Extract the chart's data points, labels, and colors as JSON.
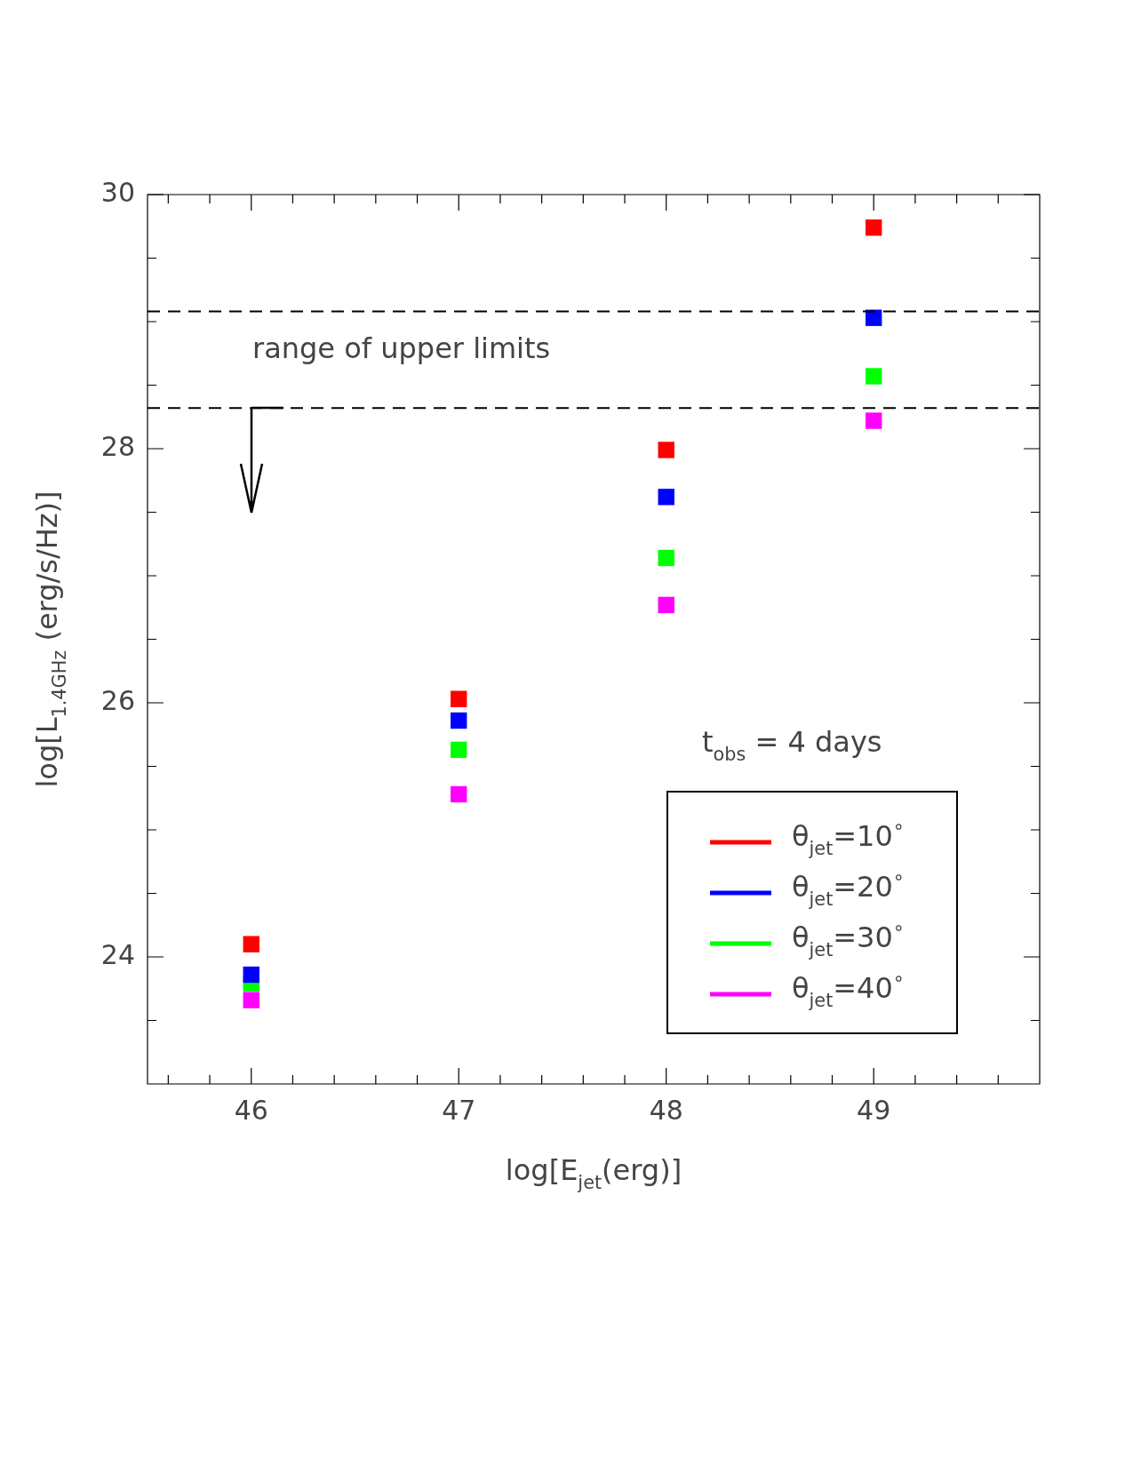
{
  "chart_data": {
    "type": "scatter",
    "xlabel": "log[E$_{jet}$(erg)]",
    "ylabel": "log[L$_{1.4GHz}$ (erg/s/Hz)]",
    "x": [
      46,
      47,
      48,
      49
    ],
    "series": [
      {
        "name": "θ$_{jet}$=10$^{∘}$",
        "color": "#ff0000",
        "values": [
          24.1,
          26.03,
          27.99,
          29.74
        ]
      },
      {
        "name": "θ$_{jet}$=20$^{∘}$",
        "color": "#0000ff",
        "values": [
          23.86,
          25.86,
          27.62,
          29.03
        ]
      },
      {
        "name": "θ$_{jet}$=30$^{∘}$",
        "color": "#00ff00",
        "values": [
          23.79,
          25.63,
          27.14,
          28.57
        ]
      },
      {
        "name": "θ$_{jet}$=40$^{∘}$",
        "color": "#ff00ff",
        "values": [
          23.66,
          25.28,
          26.77,
          28.22
        ]
      }
    ],
    "xlim": [
      45.5,
      49.8
    ],
    "ylim": [
      23,
      30
    ],
    "xticks": [
      {
        "value": 45.6,
        "label": null
      },
      {
        "value": 45.8,
        "label": null
      },
      46,
      {
        "value": 46.2,
        "label": null
      },
      {
        "value": 46.4,
        "label": null
      },
      {
        "value": 46.6,
        "label": null
      },
      {
        "value": 46.8,
        "label": null
      },
      47,
      {
        "value": 47.2,
        "label": null
      },
      {
        "value": 47.4,
        "label": null
      },
      {
        "value": 47.6,
        "label": null
      },
      {
        "value": 47.8,
        "label": null
      },
      48,
      {
        "value": 48.2,
        "label": null
      },
      {
        "value": 48.4,
        "label": null
      },
      {
        "value": 48.6,
        "label": null
      },
      {
        "value": 48.8,
        "label": null
      },
      49,
      {
        "value": 49.2,
        "label": null
      },
      {
        "value": 49.4,
        "label": null
      },
      {
        "value": 49.6,
        "label": null
      }
    ],
    "yticks": [
      {
        "value": 23.5,
        "label": null
      },
      24,
      {
        "value": 24.5,
        "label": null
      },
      {
        "value": 25,
        "label": null
      },
      {
        "value": 25.5,
        "label": null
      },
      26,
      {
        "value": 26.5,
        "label": null
      },
      {
        "value": 27,
        "label": null
      },
      {
        "value": 27.5,
        "label": null
      },
      28,
      {
        "value": 28.5,
        "label": null
      },
      {
        "value": 29,
        "label": null
      },
      {
        "value": 29.5,
        "label": null
      },
      30
    ],
    "ref_lines": [
      {
        "axis": "y",
        "value": 29.08,
        "color": "#000000",
        "line_style": "dashed"
      },
      {
        "axis": "y",
        "value": 28.32,
        "color": "#000000",
        "line_style": "dashed"
      }
    ],
    "annotations": [
      "range of upper limits",
      "t$_{obs}$ = 4 days"
    ],
    "marker": "square",
    "grid": false,
    "legend": "bottom right"
  }
}
